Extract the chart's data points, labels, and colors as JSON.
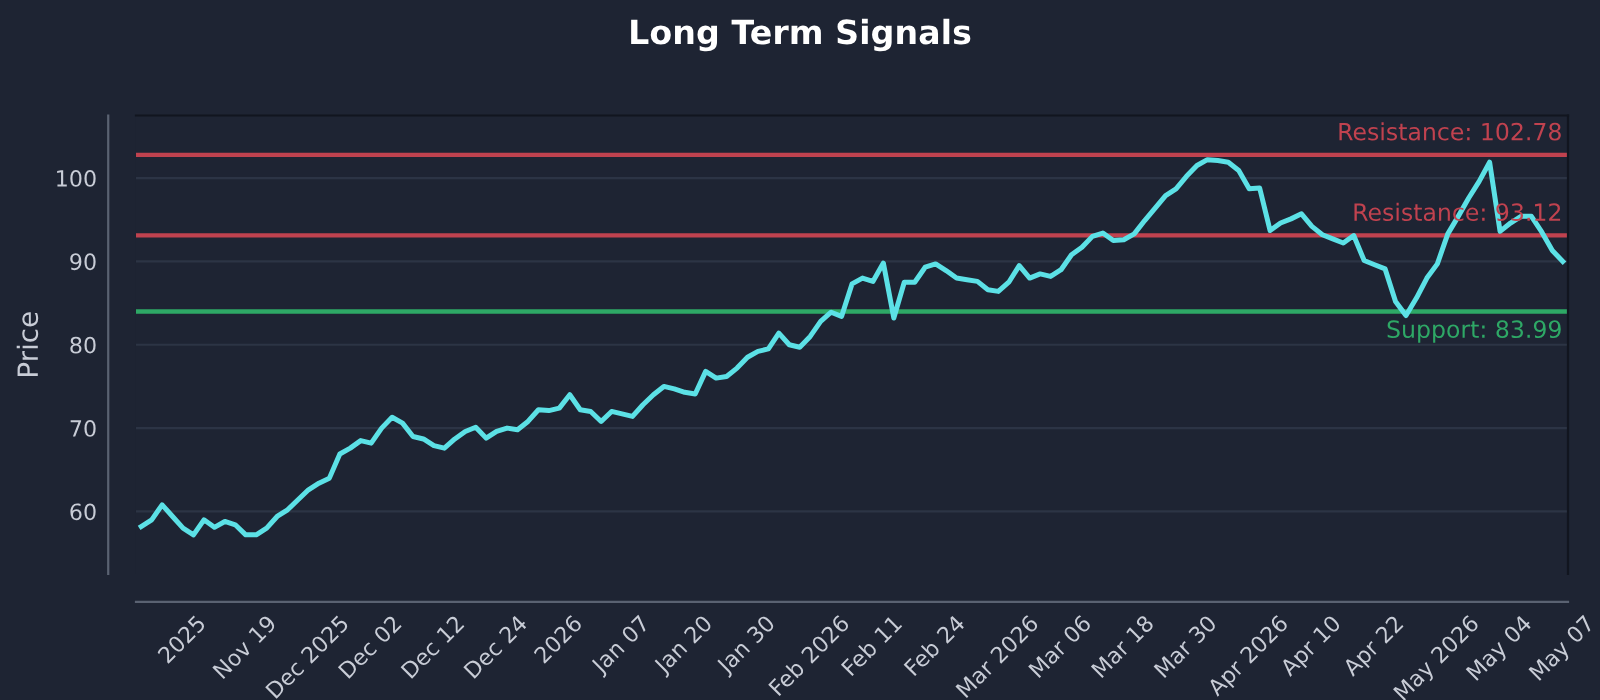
{
  "chart_data": {
    "type": "line",
    "title": "Long Term Signals",
    "ylabel": "Price",
    "categories": [
      null,
      null,
      null,
      null,
      "2025",
      null,
      null,
      null,
      null,
      null,
      "Nov 19",
      null,
      null,
      null,
      null,
      null,
      "Dec 2025",
      null,
      null,
      null,
      null,
      null,
      "Dec 02",
      null,
      null,
      null,
      null,
      null,
      "Dec 12",
      null,
      null,
      null,
      null,
      null,
      "Dec 24",
      null,
      null,
      null,
      null,
      null,
      "2026",
      null,
      null,
      null,
      null,
      null,
      "Jan 07",
      null,
      null,
      null,
      null,
      null,
      "Jan 20",
      null,
      null,
      null,
      null,
      null,
      "Jan 30",
      null,
      null,
      null,
      null,
      null,
      "Feb 2026",
      null,
      null,
      null,
      null,
      null,
      "Feb 11",
      null,
      null,
      null,
      null,
      null,
      "Feb 24",
      null,
      null,
      null,
      null,
      null,
      "Mar 2026",
      null,
      null,
      null,
      null,
      null,
      "Mar 06",
      null,
      null,
      null,
      null,
      null,
      "Mar 18",
      null,
      null,
      null,
      null,
      null,
      "Mar 30",
      null,
      null,
      null,
      null,
      null,
      "Apr 2026",
      null,
      null,
      null,
      null,
      null,
      "Apr 10",
      null,
      null,
      null,
      null,
      null,
      "Apr 22",
      null,
      null,
      null,
      null,
      null,
      "May 2026",
      null,
      null,
      null,
      null,
      null,
      "May 04",
      null,
      null,
      null,
      null,
      null,
      "May 07"
    ],
    "series": [
      {
        "color": "#5ce1e6",
        "values": [
          58.2,
          59.0,
          60.8,
          59.4,
          58.0,
          57.2,
          59.0,
          58.1,
          58.8,
          58.4,
          57.2,
          57.2,
          58.0,
          59.4,
          60.2,
          61.4,
          62.6,
          63.4,
          64.0,
          66.9,
          67.6,
          68.5,
          68.2,
          70.0,
          71.3,
          70.6,
          69.0,
          68.7,
          67.9,
          67.6,
          68.7,
          69.6,
          70.1,
          68.8,
          69.6,
          70.0,
          69.8,
          70.8,
          72.2,
          72.1,
          72.4,
          74.0,
          72.2,
          72.0,
          70.8,
          72.0,
          71.7,
          71.4,
          72.8,
          74.0,
          75.0,
          74.7,
          74.3,
          74.1,
          76.8,
          76.0,
          76.2,
          77.2,
          78.5,
          79.2,
          79.5,
          81.4,
          80.0,
          79.7,
          81.0,
          82.8,
          83.9,
          83.4,
          87.3,
          88.0,
          87.6,
          89.8,
          83.2,
          87.5,
          87.5,
          89.3,
          89.7,
          88.9,
          88.0,
          87.8,
          87.6,
          86.6,
          86.4,
          87.5,
          89.5,
          88.0,
          88.5,
          88.2,
          89.0,
          90.8,
          91.7,
          93.0,
          93.4,
          92.5,
          92.6,
          93.3,
          94.9,
          96.4,
          97.9,
          98.7,
          100.2,
          101.5,
          102.2,
          102.1,
          101.9,
          100.9,
          98.7,
          98.8,
          93.7,
          94.6,
          95.1,
          95.7,
          94.2,
          93.2,
          92.7,
          92.2,
          93.1,
          90.1,
          89.6,
          89.1,
          85.2,
          83.5,
          85.6,
          88.0,
          89.7,
          93.3,
          95.4,
          97.6,
          99.6,
          101.9,
          93.6,
          94.6,
          95.4,
          95.4,
          93.5,
          91.3,
          90.0
        ]
      }
    ],
    "ylim": [
      52.5,
      107.5
    ],
    "yticks": [
      60,
      70,
      80,
      90,
      100
    ],
    "grid": "y",
    "line_style": "solid",
    "marker": "none",
    "legend": false,
    "ref_lines": [
      {
        "axis": "y",
        "value": 102.78,
        "label": "Resistance: 102.78",
        "color": "#c0424f"
      },
      {
        "axis": "y",
        "value": 93.12,
        "label": "Resistance: 93.12",
        "color": "#c0424f"
      },
      {
        "axis": "y",
        "value": 83.99,
        "label": "Support: 83.99",
        "color": "#2ea866"
      }
    ]
  }
}
